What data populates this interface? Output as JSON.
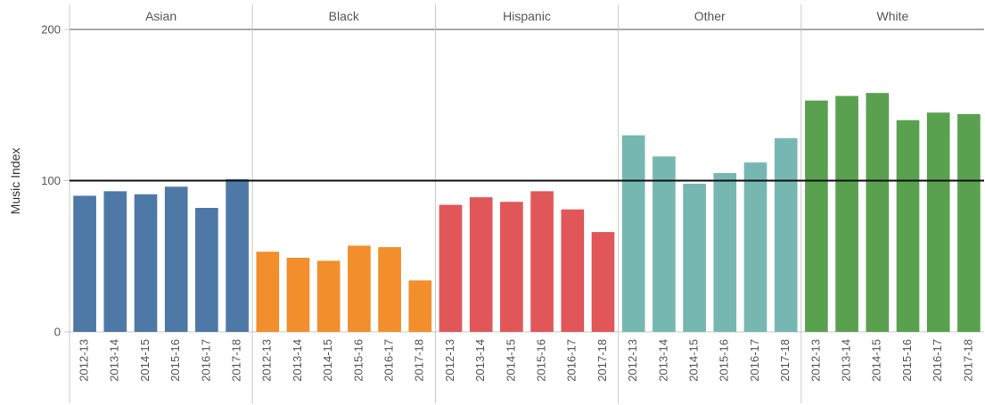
{
  "chart_data": {
    "type": "bar",
    "ylabel": "Music Index",
    "ylim": [
      0,
      200
    ],
    "yticks": [
      0,
      100,
      200
    ],
    "reference_line": 100,
    "categories": [
      "2012-13",
      "2013-14",
      "2014-15",
      "2015-16",
      "2016-17",
      "2017-18"
    ],
    "panels": [
      {
        "name": "Asian",
        "color": "#4e79a7",
        "values": [
          90,
          93,
          91,
          96,
          82,
          101
        ]
      },
      {
        "name": "Black",
        "color": "#f28e2b",
        "values": [
          53,
          49,
          47,
          57,
          56,
          34
        ]
      },
      {
        "name": "Hispanic",
        "color": "#e15759",
        "values": [
          84,
          89,
          86,
          93,
          81,
          66
        ]
      },
      {
        "name": "Other",
        "color": "#76b7b2",
        "values": [
          130,
          116,
          98,
          105,
          112,
          128
        ]
      },
      {
        "name": "White",
        "color": "#59a14f",
        "values": [
          153,
          156,
          158,
          140,
          145,
          144
        ]
      }
    ]
  }
}
